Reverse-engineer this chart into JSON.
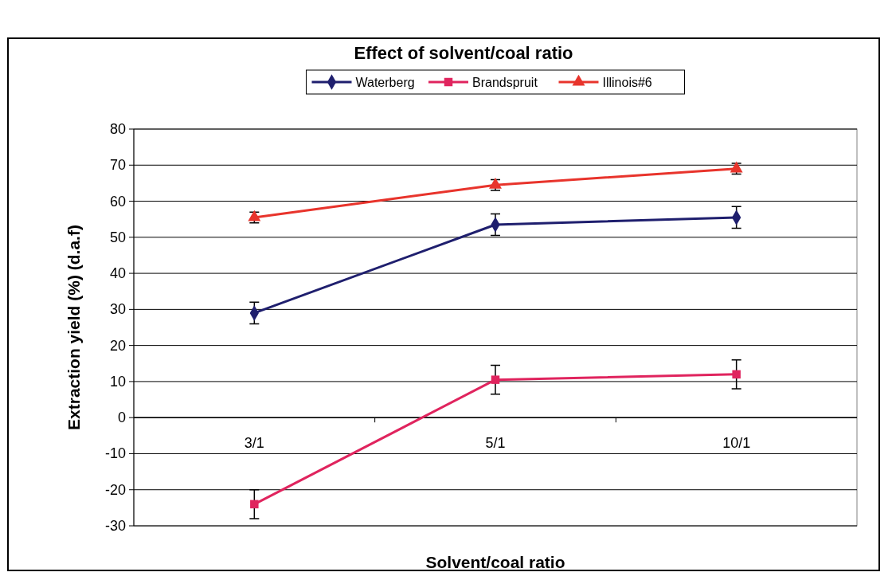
{
  "chart_data": {
    "type": "line",
    "title": "Effect of solvent/coal ratio",
    "xlabel": "Solvent/coal ratio",
    "ylabel": "Extraction yield (%) (d.a.f)",
    "categories": [
      "3/1",
      "5/1",
      "10/1"
    ],
    "series": [
      {
        "name": "Waterberg",
        "color": "#1f1f6e",
        "marker": "diamond",
        "values": [
          29,
          53.5,
          55.5
        ],
        "errors": [
          3,
          3,
          3
        ]
      },
      {
        "name": "Brandspruit",
        "color": "#e0245e",
        "marker": "square",
        "values": [
          -24,
          10.5,
          12
        ],
        "errors": [
          4,
          4,
          4
        ]
      },
      {
        "name": "Illinois#6",
        "color": "#e8342c",
        "marker": "triangle",
        "values": [
          55.5,
          64.5,
          69
        ],
        "errors": [
          1.5,
          1.5,
          1.5
        ]
      }
    ],
    "ylim": [
      -30,
      80
    ],
    "yticks": [
      -30,
      -20,
      -10,
      0,
      10,
      20,
      30,
      40,
      50,
      60,
      70,
      80
    ],
    "grid": "y",
    "legend": "top"
  }
}
